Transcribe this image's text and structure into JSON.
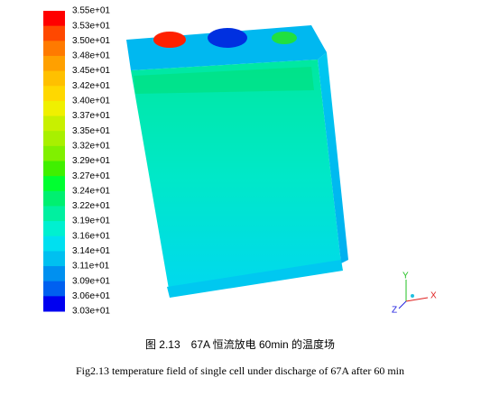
{
  "figure": {
    "colorbar": {
      "labels": [
        "3.55e+01",
        "3.53e+01",
        "3.50e+01",
        "3.48e+01",
        "3.45e+01",
        "3.42e+01",
        "3.40e+01",
        "3.37e+01",
        "3.35e+01",
        "3.32e+01",
        "3.29e+01",
        "3.27e+01",
        "3.24e+01",
        "3.22e+01",
        "3.19e+01",
        "3.16e+01",
        "3.14e+01",
        "3.11e+01",
        "3.09e+01",
        "3.06e+01",
        "3.03e+01"
      ],
      "colors": [
        "#ff0000",
        "#ff4800",
        "#ff7a00",
        "#ffa000",
        "#ffc000",
        "#ffd800",
        "#f0f000",
        "#c8f000",
        "#a8f000",
        "#80f000",
        "#40f000",
        "#00ff30",
        "#00f070",
        "#00f0a0",
        "#00f0d0",
        "#00e0f0",
        "#00c0f0",
        "#0090f0",
        "#0060f0",
        "#0000f0"
      ]
    },
    "axes_triad": {
      "x": "X",
      "y": "Y",
      "z": "Z"
    },
    "caption_cn": "图 2.13　67A 恒流放电 60min 的温度场",
    "caption_en": "Fig2.13     temperature field of single cell under discharge of 67A after 60 min"
  }
}
